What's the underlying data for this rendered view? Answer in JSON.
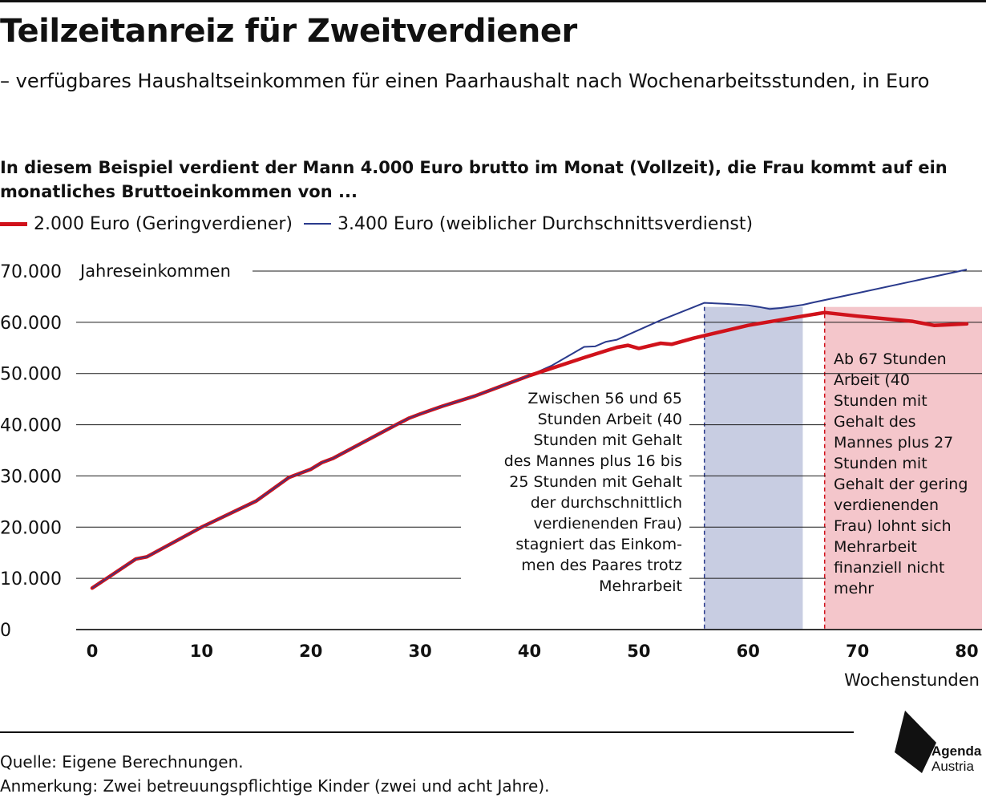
{
  "header": {
    "title": "Teilzeitanreiz für Zweitverdiener",
    "subtitle": "– verfügbares Haushaltseinkommen für einen Paarhaushalt nach Wochenarbeitsstunden, in Euro",
    "lead": "In diesem Beispiel verdient der Mann 4.000 Euro brutto im Monat (Vollzeit), die Frau kommt auf ein monatliches Bruttoeinkommen von ..."
  },
  "colors": {
    "low_earner": "#d0121b",
    "average_earner": "#2a3a8c",
    "band_blue": "#c8cde2",
    "band_red": "#f4c6cb",
    "grid": "#1a1a1a"
  },
  "chart_data": {
    "type": "line",
    "ylabel": "Jahreseinkommen",
    "xlabel": "Wochenstunden",
    "xlim": [
      0,
      80
    ],
    "ylim": [
      0,
      70000
    ],
    "x_ticks": [
      "0",
      "10",
      "20",
      "30",
      "40",
      "50",
      "60",
      "70",
      "80"
    ],
    "y_ticks": [
      "0",
      "10.000",
      "20.000",
      "30.000",
      "40.000",
      "50.000",
      "60.000",
      "70.000"
    ],
    "x_tick_values": [
      0,
      10,
      20,
      30,
      40,
      50,
      60,
      70,
      80
    ],
    "y_tick_values": [
      0,
      10000,
      20000,
      30000,
      40000,
      50000,
      60000,
      70000
    ],
    "grid": "horizontal",
    "legend_position": "top-left",
    "series": [
      {
        "name": "2.000 Euro (Geringverdiener)",
        "color": "#d0121b",
        "points": [
          [
            0,
            8100
          ],
          [
            4,
            13800
          ],
          [
            5,
            14200
          ],
          [
            10,
            20000
          ],
          [
            15,
            25100
          ],
          [
            18,
            29700
          ],
          [
            20,
            31300
          ],
          [
            21,
            32600
          ],
          [
            22,
            33400
          ],
          [
            25,
            36800
          ],
          [
            28,
            40200
          ],
          [
            29,
            41300
          ],
          [
            30,
            42100
          ],
          [
            32,
            43600
          ],
          [
            35,
            45600
          ],
          [
            40,
            49600
          ],
          [
            45,
            53100
          ],
          [
            48,
            55100
          ],
          [
            49,
            55500
          ],
          [
            50,
            54900
          ],
          [
            52,
            55900
          ],
          [
            53,
            55700
          ],
          [
            55,
            56900
          ],
          [
            60,
            59400
          ],
          [
            65,
            61200
          ],
          [
            67,
            61900
          ],
          [
            70,
            61200
          ],
          [
            75,
            60200
          ],
          [
            77,
            59400
          ],
          [
            78,
            59500
          ],
          [
            80,
            59700
          ]
        ]
      },
      {
        "name": "3.400 Euro (weiblicher Durchschnittsverdienst)",
        "color": "#2a3a8c",
        "points": [
          [
            0,
            8100
          ],
          [
            4,
            13800
          ],
          [
            5,
            14200
          ],
          [
            10,
            20000
          ],
          [
            15,
            25100
          ],
          [
            18,
            29700
          ],
          [
            20,
            31300
          ],
          [
            21,
            32600
          ],
          [
            22,
            33400
          ],
          [
            25,
            36800
          ],
          [
            28,
            40200
          ],
          [
            29,
            41300
          ],
          [
            30,
            42100
          ],
          [
            32,
            43600
          ],
          [
            35,
            45600
          ],
          [
            40,
            49600
          ],
          [
            42,
            51500
          ],
          [
            45,
            55200
          ],
          [
            46,
            55300
          ],
          [
            47,
            56200
          ],
          [
            48,
            56600
          ],
          [
            52,
            60400
          ],
          [
            56,
            63800
          ],
          [
            58,
            63600
          ],
          [
            60,
            63300
          ],
          [
            61,
            63000
          ],
          [
            62,
            62600
          ],
          [
            63,
            62800
          ],
          [
            65,
            63400
          ],
          [
            66,
            63900
          ],
          [
            70,
            65700
          ],
          [
            75,
            68000
          ],
          [
            80,
            70300
          ]
        ]
      }
    ],
    "bands": [
      {
        "from": 56,
        "to": 65,
        "color": "#c8cde2",
        "line_color": "#2a3a8c"
      },
      {
        "from": 67,
        "to": 80,
        "color": "#f4c6cb",
        "line_color": "#d0121b"
      }
    ],
    "annotations": [
      {
        "lines": [
          "Zwischen 56 und 65",
          "Stunden Arbeit (40",
          "Stunden mit Gehalt",
          "des Mannes plus 16 bis",
          "25 Stunden mit Gehalt",
          "der durchschnittlich",
          "verdienenden Frau)",
          "stagniert das Einkom-",
          "men des Paares trotz",
          "Mehrarbeit"
        ]
      },
      {
        "lines": [
          "Ab 67 Stunden",
          "Arbeit (40",
          "Stunden mit",
          "Gehalt des",
          "Mannes plus 27",
          "Stunden mit",
          "Gehalt der gering",
          "verdienenden",
          "Frau) lohnt sich",
          "Mehrarbeit",
          "finanziell nicht",
          "mehr"
        ]
      }
    ]
  },
  "footer": {
    "source": "Quelle: Eigene Berechnungen.",
    "note": "Anmerkung: Zwei betreuungspflichtige Kinder (zwei und acht Jahre)."
  },
  "logo": {
    "line1": "Agenda",
    "line2": "Austria"
  }
}
